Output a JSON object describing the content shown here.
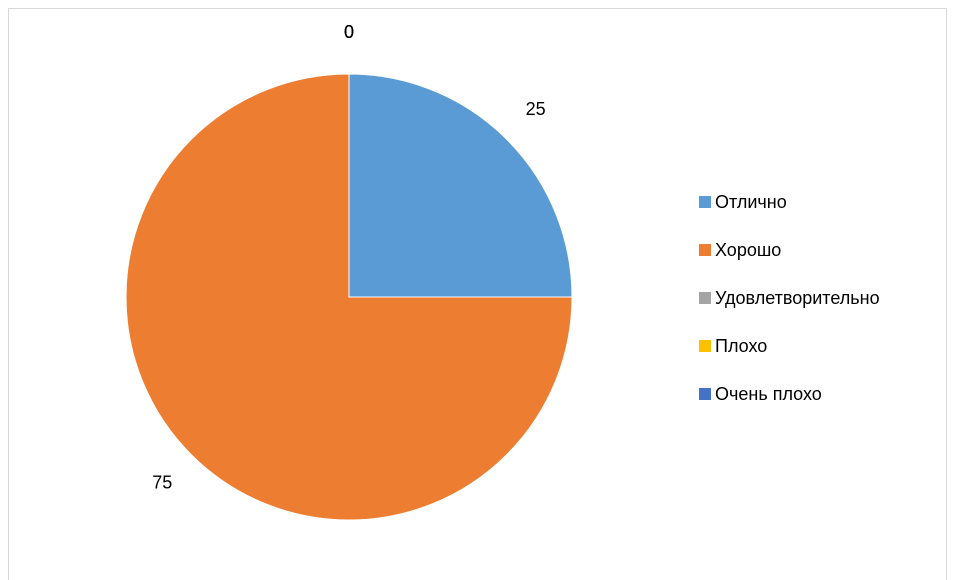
{
  "chart_data": {
    "type": "pie",
    "categories": [
      "Отлично",
      "Хорошо",
      "Удовлетворительно",
      "Плохо",
      "Очень плохо"
    ],
    "values": [
      25,
      75,
      0,
      0,
      0
    ],
    "colors": [
      "#5b9bd5",
      "#ed7d31",
      "#a5a5a5",
      "#ffc000",
      "#4472c4"
    ],
    "legend": "right"
  }
}
